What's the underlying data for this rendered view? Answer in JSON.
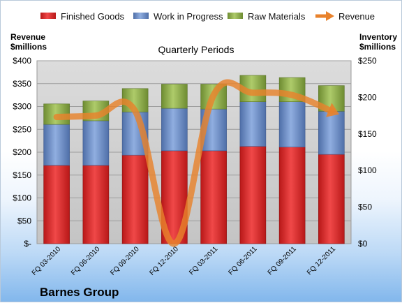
{
  "chart_data": {
    "type": "bar",
    "stacked": true,
    "title": "Quarterly Periods",
    "company": "Barnes Group",
    "categories": [
      "FQ 03-2010",
      "FQ 06-2010",
      "FQ 09-2010",
      "FQ 12-2010",
      "FQ 03-2011",
      "FQ 06-2011",
      "FQ 09-2011",
      "FQ 12-2011"
    ],
    "left_axis": {
      "title_line1": "Revenue",
      "title_line2": "$millions",
      "range": [
        0,
        400
      ],
      "ticks": [
        0,
        50,
        100,
        150,
        200,
        250,
        300,
        350,
        400
      ],
      "tick_labels": [
        "$-",
        "$50",
        "$100",
        "$150",
        "$200",
        "$250",
        "$300",
        "$350",
        "$400"
      ]
    },
    "right_axis": {
      "title_line1": "Inventory",
      "title_line2": "$millions",
      "range": [
        0,
        250
      ],
      "ticks": [
        0,
        50,
        100,
        150,
        200,
        250
      ],
      "tick_labels": [
        "$0",
        "$50",
        "$100",
        "$150",
        "$200",
        "$250"
      ]
    },
    "series": [
      {
        "name": "Finished Goods",
        "axis": "right",
        "kind": "bar",
        "color": "#e03030",
        "values": [
          107,
          107,
          121,
          127,
          127,
          133,
          132,
          122
        ]
      },
      {
        "name": "Work in Progress",
        "axis": "right",
        "kind": "bar",
        "color": "#6f8fc6",
        "values": [
          56,
          61,
          59,
          58,
          57,
          61,
          62,
          59
        ]
      },
      {
        "name": "Raw Materials",
        "axis": "right",
        "kind": "bar",
        "color": "#93b24f",
        "values": [
          28,
          27,
          32,
          33,
          34,
          36,
          33,
          35
        ]
      },
      {
        "name": "Revenue",
        "axis": "left",
        "kind": "line",
        "color": "#e8822c",
        "values": [
          277,
          280,
          290,
          0,
          325,
          330,
          325,
          290
        ]
      }
    ],
    "legend_position": "top",
    "grid": true
  }
}
